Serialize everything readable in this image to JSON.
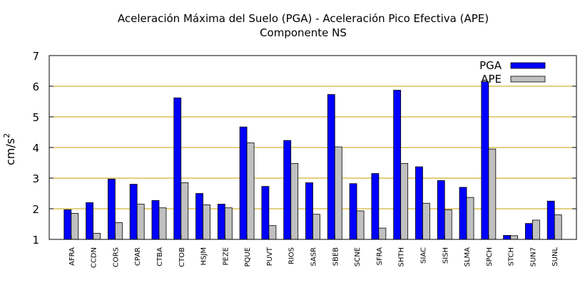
{
  "chart_data": {
    "type": "bar",
    "title": "Aceleración Máxima del Suelo (PGA) -  Aceleración Pico Efectiva (APE)",
    "subtitle": "Componente NS",
    "ylabel": "cm/s",
    "ylabel_sup": "2",
    "xlabel": "",
    "ylim": [
      1,
      7
    ],
    "yticks": [
      "1",
      "2",
      "3",
      "4",
      "5",
      "6",
      "7"
    ],
    "grid": "horizontal",
    "legend_position": "top-right",
    "categories": [
      "AFRA",
      "CCDN",
      "CORS",
      "CPAR",
      "CTBA",
      "CTOB",
      "HSJM",
      "PEZE",
      "PQUE",
      "PUVT",
      "RIOS",
      "SASR",
      "SBEB",
      "SCNE",
      "SFRA",
      "SHTH",
      "SIAC",
      "SISH",
      "SLMA",
      "SPCH",
      "STCH",
      "SUN7",
      "SUNL"
    ],
    "series": [
      {
        "name": "PGA",
        "color": "#0000ff",
        "values": [
          1.97,
          2.2,
          2.97,
          2.8,
          2.27,
          5.62,
          2.5,
          2.15,
          4.67,
          2.73,
          4.23,
          2.85,
          5.73,
          2.82,
          3.15,
          5.87,
          3.37,
          2.92,
          2.7,
          6.15,
          1.13,
          1.52,
          2.25
        ]
      },
      {
        "name": "APE",
        "color": "#c0c0c0",
        "values": [
          1.85,
          1.2,
          1.55,
          2.15,
          2.03,
          2.85,
          2.13,
          2.03,
          4.15,
          1.45,
          3.48,
          1.82,
          4.02,
          1.93,
          1.37,
          3.48,
          2.18,
          1.97,
          2.37,
          3.95,
          1.12,
          1.63,
          1.8
        ]
      }
    ],
    "gridline_color": "#c8a000"
  }
}
